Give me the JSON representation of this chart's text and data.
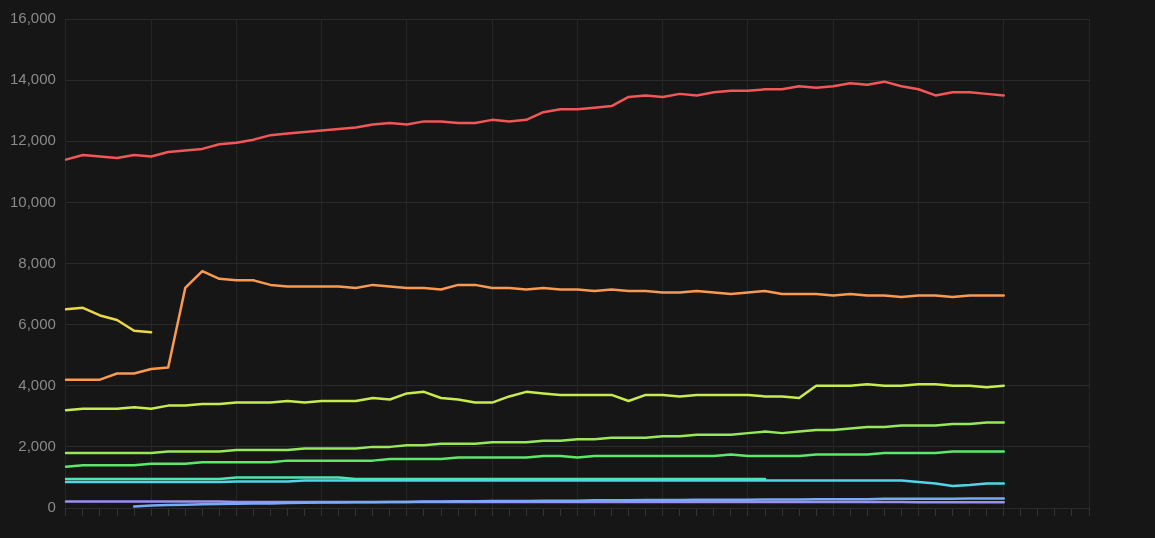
{
  "chart_data": {
    "type": "line",
    "categories": [
      null,
      null,
      null,
      null,
      null,
      null,
      null,
      null,
      null,
      null,
      null,
      null,
      null,
      null,
      null,
      null,
      null,
      null,
      null,
      null,
      null,
      null,
      null,
      null,
      null,
      null,
      null,
      null,
      null,
      null,
      null,
      null,
      null,
      null,
      null,
      null,
      null,
      null,
      null,
      null,
      null,
      null,
      null,
      null,
      null,
      null,
      null,
      null,
      null,
      null,
      null,
      null,
      null,
      null,
      null,
      null,
      null,
      null,
      null,
      null,
      null
    ],
    "ylim": [
      0,
      16000
    ],
    "yticks": [
      0,
      {
        "value": 2000,
        "label": "2,000"
      },
      {
        "value": 4000,
        "label": "4,000"
      },
      {
        "value": 6000,
        "label": "6,000"
      },
      {
        "value": 8000,
        "label": "8,000"
      },
      {
        "value": 10000,
        "label": "10,000"
      },
      {
        "value": 12000,
        "label": "12,000"
      },
      {
        "value": 14000,
        "label": "14,000"
      },
      {
        "value": 16000,
        "label": "16,000"
      }
    ],
    "grid": true,
    "tick_labels": "y",
    "marker": "none",
    "line_style": "solid",
    "series": [
      {
        "color": "#f25757",
        "values": [
          11400,
          11550,
          11500,
          11450,
          11550,
          11500,
          11650,
          11700,
          11750,
          11900,
          11950,
          12050,
          12200,
          12250,
          12300,
          12350,
          12400,
          12450,
          12550,
          12600,
          12550,
          12650,
          12650,
          12600,
          12600,
          12700,
          12650,
          12700,
          12950,
          13050,
          13050,
          13100,
          13150,
          13450,
          13500,
          13450,
          13550,
          13500,
          13600,
          13650,
          13650,
          13700,
          13700,
          13800,
          13750,
          13800,
          13900,
          13850,
          13950,
          13800,
          13700,
          13500,
          13600,
          13600,
          13550,
          13500,
          null,
          null,
          null,
          null,
          null
        ]
      },
      {
        "color": "#fa9a50",
        "values": [
          4200,
          4200,
          4200,
          4400,
          4400,
          4550,
          4600,
          7200,
          7750,
          7500,
          7450,
          7450,
          7300,
          7250,
          7250,
          7250,
          7250,
          7200,
          7300,
          7250,
          7200,
          7200,
          7150,
          7300,
          7300,
          7200,
          7200,
          7150,
          7200,
          7150,
          7150,
          7100,
          7150,
          7100,
          7100,
          7050,
          7050,
          7100,
          7050,
          7000,
          7050,
          7100,
          7000,
          7000,
          7000,
          6950,
          7000,
          6950,
          6950,
          6900,
          6950,
          6950,
          6900,
          6950,
          6950,
          6950,
          null,
          null,
          null,
          null,
          null
        ]
      },
      {
        "color": "#ebd94a",
        "values": [
          6500,
          6550,
          6300,
          6150,
          5800,
          5750,
          null,
          null,
          null,
          null,
          null,
          null,
          null,
          null,
          null,
          null,
          null,
          null,
          null,
          null,
          null,
          null,
          null,
          null,
          null,
          null,
          null,
          null,
          null,
          null,
          null,
          null,
          null,
          null,
          null,
          null,
          null,
          null,
          null,
          null,
          null,
          null,
          null,
          null,
          null,
          null,
          null,
          null,
          null,
          null,
          null,
          null,
          null,
          null,
          null,
          null,
          null,
          null,
          null,
          null,
          null
        ]
      },
      {
        "color": "#c8ec50",
        "values": [
          3200,
          3250,
          3250,
          3250,
          3300,
          3250,
          3350,
          3350,
          3400,
          3400,
          3450,
          3450,
          3450,
          3500,
          3450,
          3500,
          3500,
          3500,
          3600,
          3550,
          3750,
          3800,
          3600,
          3550,
          3450,
          3450,
          3650,
          3800,
          3750,
          3700,
          3700,
          3700,
          3700,
          3500,
          3700,
          3700,
          3650,
          3700,
          3700,
          3700,
          3700,
          3650,
          3650,
          3600,
          4000,
          4000,
          4000,
          4050,
          4000,
          4000,
          4050,
          4050,
          4000,
          4000,
          3950,
          4000,
          null,
          null,
          null,
          null,
          null
        ]
      },
      {
        "color": "#97e85a",
        "values": [
          1800,
          1800,
          1800,
          1800,
          1800,
          1800,
          1850,
          1850,
          1850,
          1850,
          1900,
          1900,
          1900,
          1900,
          1950,
          1950,
          1950,
          1950,
          2000,
          2000,
          2050,
          2050,
          2100,
          2100,
          2100,
          2150,
          2150,
          2150,
          2200,
          2200,
          2250,
          2250,
          2300,
          2300,
          2300,
          2350,
          2350,
          2400,
          2400,
          2400,
          2450,
          2500,
          2450,
          2500,
          2550,
          2550,
          2600,
          2650,
          2650,
          2700,
          2700,
          2700,
          2750,
          2750,
          2800,
          2800,
          null,
          null,
          null,
          null,
          null
        ]
      },
      {
        "color": "#5ce86a",
        "values": [
          1350,
          1400,
          1400,
          1400,
          1400,
          1450,
          1450,
          1450,
          1500,
          1500,
          1500,
          1500,
          1500,
          1550,
          1550,
          1550,
          1550,
          1550,
          1550,
          1600,
          1600,
          1600,
          1600,
          1650,
          1650,
          1650,
          1650,
          1650,
          1700,
          1700,
          1650,
          1700,
          1700,
          1700,
          1700,
          1700,
          1700,
          1700,
          1700,
          1750,
          1700,
          1700,
          1700,
          1700,
          1750,
          1750,
          1750,
          1750,
          1800,
          1800,
          1800,
          1800,
          1850,
          1850,
          1850,
          1850,
          null,
          null,
          null,
          null,
          null
        ]
      },
      {
        "color": "#4ee6b0",
        "values": [
          950,
          950,
          950,
          950,
          950,
          950,
          950,
          950,
          950,
          950,
          1000,
          1000,
          1000,
          1000,
          1000,
          1000,
          1000,
          950,
          950,
          950,
          950,
          950,
          950,
          950,
          950,
          950,
          950,
          950,
          950,
          950,
          950,
          950,
          950,
          950,
          950,
          950,
          950,
          950,
          950,
          950,
          950,
          950,
          null,
          null,
          null,
          null,
          null,
          null,
          null,
          null,
          null,
          null,
          null,
          null,
          null,
          null,
          null,
          null,
          null,
          null,
          null
        ]
      },
      {
        "color": "#4fd6e8",
        "values": [
          850,
          850,
          850,
          850,
          850,
          850,
          850,
          850,
          850,
          850,
          870,
          870,
          870,
          870,
          900,
          900,
          900,
          900,
          900,
          900,
          900,
          900,
          900,
          900,
          900,
          900,
          900,
          900,
          900,
          900,
          900,
          900,
          900,
          900,
          900,
          900,
          900,
          900,
          900,
          900,
          900,
          900,
          900,
          900,
          900,
          900,
          900,
          900,
          900,
          900,
          850,
          800,
          720,
          750,
          800,
          800,
          null,
          null,
          null,
          null,
          null
        ]
      },
      {
        "color": "#77aaf7",
        "values": [
          null,
          null,
          null,
          null,
          50,
          80,
          100,
          110,
          120,
          130,
          140,
          150,
          150,
          160,
          170,
          180,
          180,
          190,
          190,
          200,
          200,
          210,
          210,
          220,
          220,
          230,
          230,
          230,
          240,
          240,
          240,
          250,
          250,
          250,
          260,
          260,
          260,
          270,
          270,
          270,
          270,
          280,
          280,
          280,
          290,
          290,
          290,
          290,
          300,
          300,
          300,
          300,
          300,
          310,
          310,
          310,
          null,
          null,
          null,
          null,
          null
        ]
      },
      {
        "color": "#9b8ff0",
        "values": [
          210,
          210,
          210,
          210,
          210,
          210,
          210,
          210,
          210,
          210,
          200,
          200,
          200,
          200,
          200,
          200,
          200,
          200,
          200,
          200,
          200,
          200,
          200,
          200,
          200,
          200,
          200,
          200,
          200,
          200,
          200,
          200,
          200,
          200,
          200,
          200,
          200,
          200,
          200,
          200,
          200,
          200,
          200,
          200,
          200,
          200,
          200,
          200,
          200,
          200,
          190,
          190,
          190,
          190,
          190,
          190,
          null,
          null,
          null,
          null,
          null
        ]
      }
    ]
  }
}
